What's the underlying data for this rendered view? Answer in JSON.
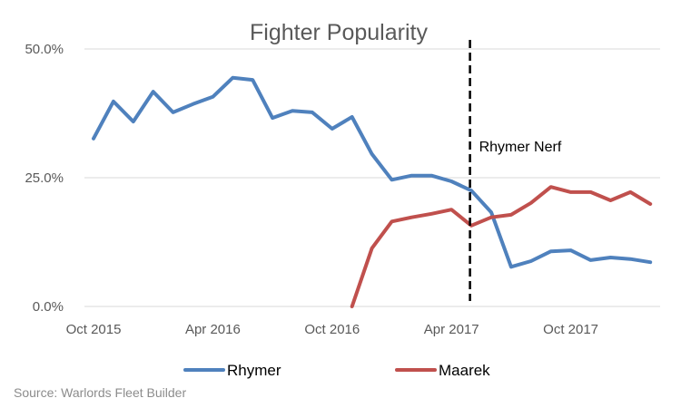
{
  "chart_data": {
    "type": "line",
    "title": "Fighter Popularity",
    "xlabel": "",
    "ylabel": "",
    "ylim": [
      0,
      50
    ],
    "grid": true,
    "legend_position": "bottom",
    "y_ticks": [
      "0.0%",
      "25.0%",
      "50.0%"
    ],
    "x_ticks": [
      "Oct 2015",
      "Apr 2016",
      "Oct 2016",
      "Apr 2017",
      "Oct 2017"
    ],
    "x": [
      "Oct 2015",
      "Nov 2015",
      "Dec 2015",
      "Jan 2016",
      "Feb 2016",
      "Mar 2016",
      "Apr 2016",
      "May 2016",
      "Jun 2016",
      "Jul 2016",
      "Aug 2016",
      "Sep 2016",
      "Oct 2016",
      "Nov 2016",
      "Dec 2016",
      "Jan 2017",
      "Feb 2017",
      "Mar 2017",
      "Apr 2017",
      "May 2017",
      "Jun 2017",
      "Jul 2017",
      "Aug 2017",
      "Sep 2017",
      "Oct 2017",
      "Nov 2017",
      "Dec 2017",
      "Jan 2018",
      "Feb 2018"
    ],
    "series": [
      {
        "name": "Rhymer",
        "color": "#4f81bd",
        "values": [
          32.6,
          39.8,
          35.9,
          41.7,
          37.7,
          39.3,
          40.7,
          44.4,
          44.0,
          36.6,
          38.0,
          37.7,
          34.5,
          36.8,
          29.6,
          24.6,
          25.4,
          25.4,
          24.3,
          22.5,
          18.3,
          7.7,
          8.8,
          10.7,
          10.9,
          9.0,
          9.5,
          9.2,
          8.6
        ]
      },
      {
        "name": "Maarek",
        "color": "#c0504d",
        "values": [
          null,
          null,
          null,
          null,
          null,
          null,
          null,
          null,
          null,
          null,
          null,
          null,
          null,
          0.0,
          11.3,
          16.5,
          17.3,
          18.0,
          18.8,
          15.7,
          17.3,
          17.8,
          20.1,
          23.2,
          22.2,
          22.2,
          20.6,
          22.2,
          19.9
        ]
      }
    ],
    "annotations": [
      {
        "type": "vertical-dashed-line",
        "x": "May 2017",
        "label": "Rhymer Nerf"
      }
    ],
    "source": "Source: Warlords Fleet Builder"
  }
}
